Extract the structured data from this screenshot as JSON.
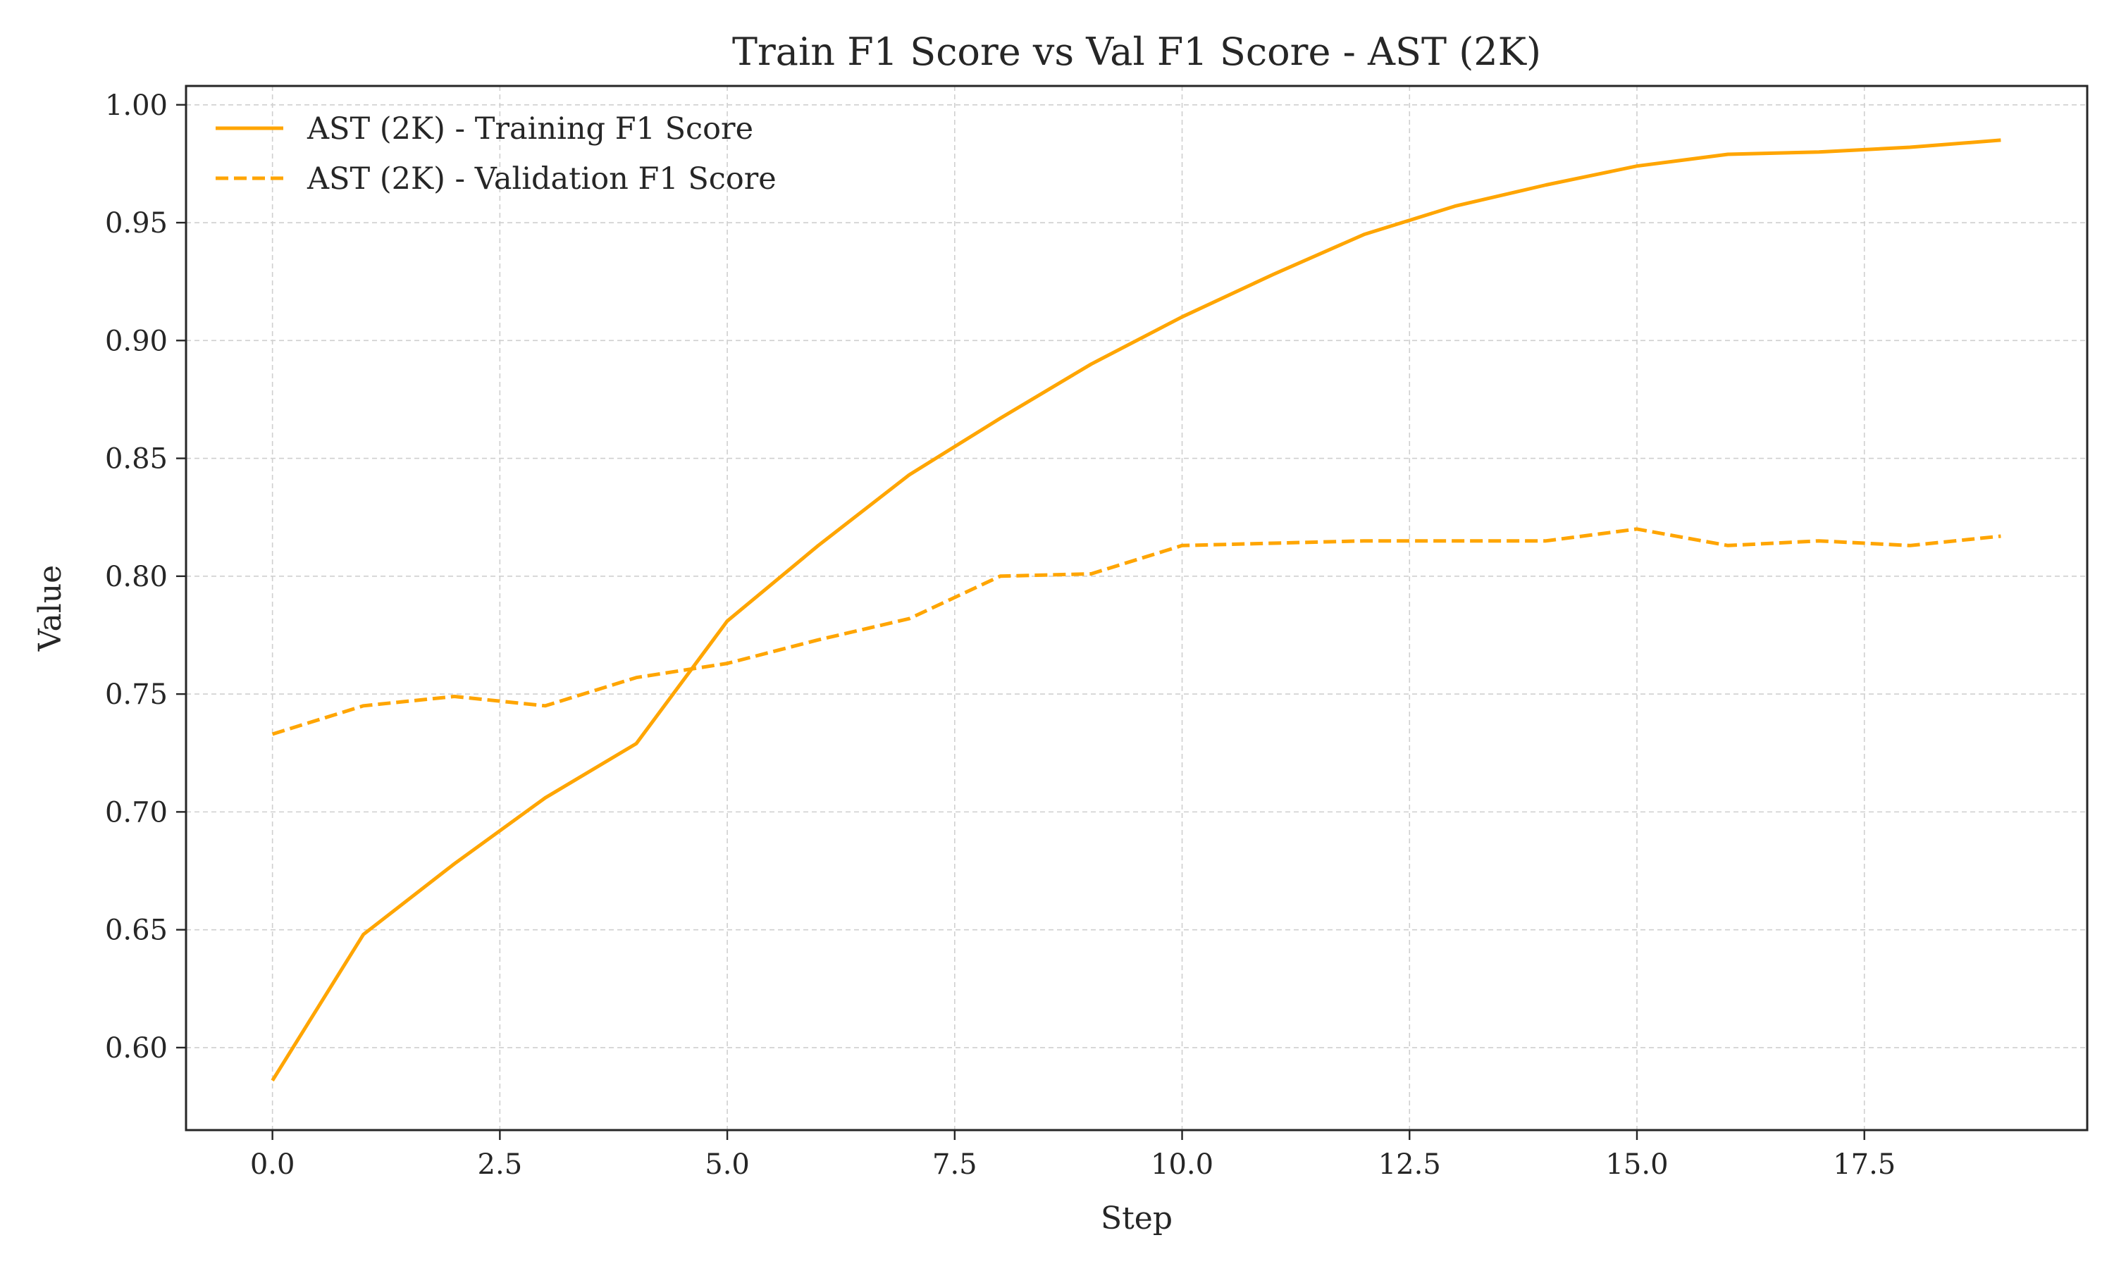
{
  "chart_data": {
    "type": "line",
    "title": "Train F1 Score vs Val F1 Score - AST (2K)",
    "xlabel": "Step",
    "ylabel": "Value",
    "xlim": [
      -0.95,
      19.95
    ],
    "ylim": [
      0.565,
      1.008
    ],
    "xticks": [
      0.0,
      2.5,
      5.0,
      7.5,
      10.0,
      12.5,
      15.0,
      17.5
    ],
    "xtick_labels": [
      "0.0",
      "2.5",
      "5.0",
      "7.5",
      "10.0",
      "12.5",
      "15.0",
      "17.5"
    ],
    "yticks": [
      0.6,
      0.65,
      0.7,
      0.75,
      0.8,
      0.85,
      0.9,
      0.95,
      1.0
    ],
    "ytick_labels": [
      "0.60",
      "0.65",
      "0.70",
      "0.75",
      "0.80",
      "0.85",
      "0.90",
      "0.95",
      "1.00"
    ],
    "grid": true,
    "legend_position": "top-left",
    "x": [
      0,
      1,
      2,
      3,
      4,
      5,
      6,
      7,
      8,
      9,
      10,
      11,
      12,
      13,
      14,
      15,
      16,
      17,
      18,
      19
    ],
    "series": [
      {
        "name": "AST (2K) - Training F1 Score",
        "color": "#FFA500",
        "line_style": "solid",
        "values": [
          0.586,
          0.648,
          0.678,
          0.706,
          0.729,
          0.781,
          0.813,
          0.843,
          0.867,
          0.89,
          0.91,
          0.928,
          0.945,
          0.957,
          0.966,
          0.974,
          0.979,
          0.98,
          0.982,
          0.985
        ]
      },
      {
        "name": "AST (2K) - Validation F1 Score",
        "color": "#FFA500",
        "line_style": "dashed",
        "values": [
          0.733,
          0.745,
          0.749,
          0.745,
          0.757,
          0.763,
          0.773,
          0.782,
          0.8,
          0.801,
          0.813,
          0.814,
          0.815,
          0.815,
          0.815,
          0.82,
          0.813,
          0.815,
          0.813,
          0.817
        ]
      }
    ]
  }
}
